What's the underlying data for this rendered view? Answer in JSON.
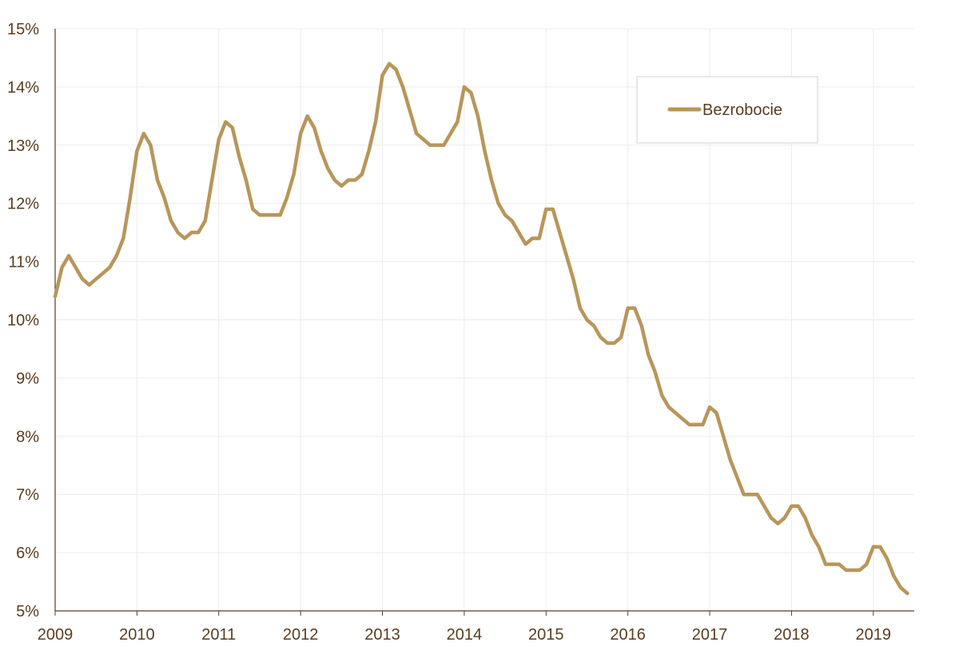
{
  "chart_data": {
    "type": "line",
    "title": "",
    "xlabel": "",
    "ylabel": "",
    "ylim": [
      5,
      15
    ],
    "xlim": [
      "2009-01",
      "2019-07"
    ],
    "grid": "horizontal and vertical, light",
    "legend_position": "top-right",
    "y_ticks": [
      "5%",
      "6%",
      "7%",
      "8%",
      "9%",
      "10%",
      "11%",
      "12%",
      "13%",
      "14%",
      "15%"
    ],
    "x_ticks": [
      "2009",
      "2010",
      "2011",
      "2012",
      "2013",
      "2014",
      "2015",
      "2016",
      "2017",
      "2018",
      "2019"
    ],
    "colors": {
      "line": "#b8965a",
      "axis": "#5a3d1e",
      "grid": "#ececec",
      "text": "#5a3d1e"
    },
    "series": [
      {
        "name": "Bezrobocie",
        "x": [
          "2009-01",
          "2009-02",
          "2009-03",
          "2009-04",
          "2009-05",
          "2009-06",
          "2009-07",
          "2009-08",
          "2009-09",
          "2009-10",
          "2009-11",
          "2009-12",
          "2010-01",
          "2010-02",
          "2010-03",
          "2010-04",
          "2010-05",
          "2010-06",
          "2010-07",
          "2010-08",
          "2010-09",
          "2010-10",
          "2010-11",
          "2010-12",
          "2011-01",
          "2011-02",
          "2011-03",
          "2011-04",
          "2011-05",
          "2011-06",
          "2011-07",
          "2011-08",
          "2011-09",
          "2011-10",
          "2011-11",
          "2011-12",
          "2012-01",
          "2012-02",
          "2012-03",
          "2012-04",
          "2012-05",
          "2012-06",
          "2012-07",
          "2012-08",
          "2012-09",
          "2012-10",
          "2012-11",
          "2012-12",
          "2013-01",
          "2013-02",
          "2013-03",
          "2013-04",
          "2013-05",
          "2013-06",
          "2013-07",
          "2013-08",
          "2013-09",
          "2013-10",
          "2013-11",
          "2013-12",
          "2014-01",
          "2014-02",
          "2014-03",
          "2014-04",
          "2014-05",
          "2014-06",
          "2014-07",
          "2014-08",
          "2014-09",
          "2014-10",
          "2014-11",
          "2014-12",
          "2015-01",
          "2015-02",
          "2015-03",
          "2015-04",
          "2015-05",
          "2015-06",
          "2015-07",
          "2015-08",
          "2015-09",
          "2015-10",
          "2015-11",
          "2015-12",
          "2016-01",
          "2016-02",
          "2016-03",
          "2016-04",
          "2016-05",
          "2016-06",
          "2016-07",
          "2016-08",
          "2016-09",
          "2016-10",
          "2016-11",
          "2016-12",
          "2017-01",
          "2017-02",
          "2017-03",
          "2017-04",
          "2017-05",
          "2017-06",
          "2017-07",
          "2017-08",
          "2017-09",
          "2017-10",
          "2017-11",
          "2017-12",
          "2018-01",
          "2018-02",
          "2018-03",
          "2018-04",
          "2018-05",
          "2018-06",
          "2018-07",
          "2018-08",
          "2018-09",
          "2018-10",
          "2018-11",
          "2018-12",
          "2019-01",
          "2019-02",
          "2019-03",
          "2019-04",
          "2019-05",
          "2019-06"
        ],
        "values": [
          10.4,
          10.9,
          11.1,
          10.9,
          10.7,
          10.6,
          10.7,
          10.8,
          10.9,
          11.1,
          11.4,
          12.1,
          12.9,
          13.2,
          13.0,
          12.4,
          12.1,
          11.7,
          11.5,
          11.4,
          11.5,
          11.5,
          11.7,
          12.4,
          13.1,
          13.4,
          13.3,
          12.8,
          12.4,
          11.9,
          11.8,
          11.8,
          11.8,
          11.8,
          12.1,
          12.5,
          13.2,
          13.5,
          13.3,
          12.9,
          12.6,
          12.4,
          12.3,
          12.4,
          12.4,
          12.5,
          12.9,
          13.4,
          14.2,
          14.4,
          14.3,
          14.0,
          13.6,
          13.2,
          13.1,
          13.0,
          13.0,
          13.0,
          13.2,
          13.4,
          14.0,
          13.9,
          13.5,
          12.9,
          12.4,
          12.0,
          11.8,
          11.7,
          11.5,
          11.3,
          11.4,
          11.4,
          11.9,
          11.9,
          11.5,
          11.1,
          10.7,
          10.2,
          10.0,
          9.9,
          9.7,
          9.6,
          9.6,
          9.7,
          10.2,
          10.2,
          9.9,
          9.4,
          9.1,
          8.7,
          8.5,
          8.4,
          8.3,
          8.2,
          8.2,
          8.2,
          8.5,
          8.4,
          8.0,
          7.6,
          7.3,
          7.0,
          7.0,
          7.0,
          6.8,
          6.6,
          6.5,
          6.6,
          6.8,
          6.8,
          6.6,
          6.3,
          6.1,
          5.8,
          5.8,
          5.8,
          5.7,
          5.7,
          5.7,
          5.8,
          6.1,
          6.1,
          5.9,
          5.6,
          5.4,
          5.3
        ]
      }
    ]
  }
}
